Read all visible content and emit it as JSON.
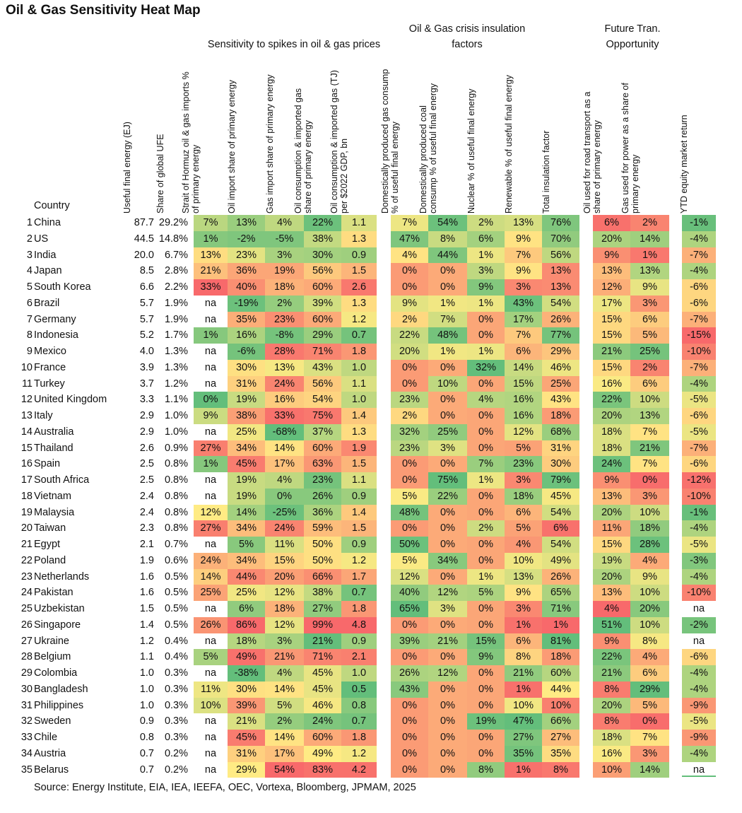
{
  "title": "Oil & Gas Sensitivity Heat Map",
  "group_headers": [
    {
      "id": "sens",
      "text": "Sensitivity to spikes in oil & gas prices"
    },
    {
      "id": "insul",
      "text": "Oil & Gas crisis insulation factors"
    },
    {
      "id": "future",
      "text": "Future Tran. Opportunity"
    }
  ],
  "country_header": "Country",
  "columns": [
    {
      "key": "ufe",
      "label": "Useful final energy (EJ)"
    },
    {
      "key": "share",
      "label": "Share of global UFE"
    },
    {
      "key": "hormuz",
      "label": "Strait of Hormuz oil & gas imports % of primary energy"
    },
    {
      "key": "oil_imp",
      "label": "Oil import share of primary energy"
    },
    {
      "key": "gas_imp",
      "label": "Gas import share of primary energy"
    },
    {
      "key": "oil_cons",
      "label": "Oil consumption & imported gas share of primary energy"
    },
    {
      "key": "oil_gdp",
      "label": "Oil consumption & imported gas (TJ) per $2022 GDP, bn"
    },
    {
      "key": "dom_gas",
      "label": "Domestically produced gas consump % of useful final energy"
    },
    {
      "key": "dom_coal",
      "label": "Domestically produced coal consump % of useful final energy"
    },
    {
      "key": "nuclear",
      "label": "Nuclear % of useful final energy"
    },
    {
      "key": "renew",
      "label": "Renewable % of useful final energy"
    },
    {
      "key": "total_ins",
      "label": "Total insulation factor"
    },
    {
      "key": "road",
      "label": "Oil used for road transport as a share of primary energy"
    },
    {
      "key": "power",
      "label": "Gas used for power as a share of primary energy"
    },
    {
      "key": "ytd",
      "label": "YTD equity market return"
    }
  ],
  "chart_data": {
    "type": "table",
    "title": "Oil & Gas Sensitivity Heat Map",
    "rows": [
      {
        "rank": "1",
        "country": "China",
        "ufe": "87.7",
        "share": "29.2%",
        "hormuz": "7%",
        "oil_imp": "13%",
        "gas_imp": "4%",
        "oil_cons": "22%",
        "oil_gdp": "1.1",
        "dom_gas": "7%",
        "dom_coal": "54%",
        "nuclear": "2%",
        "renew": "13%",
        "total_ins": "76%",
        "road": "6%",
        "power": "2%",
        "ytd": "-1%"
      },
      {
        "rank": "2",
        "country": "US",
        "ufe": "44.5",
        "share": "14.8%",
        "hormuz": "1%",
        "oil_imp": "-2%",
        "gas_imp": "-5%",
        "oil_cons": "38%",
        "oil_gdp": "1.3",
        "dom_gas": "47%",
        "dom_coal": "8%",
        "nuclear": "6%",
        "renew": "9%",
        "total_ins": "70%",
        "road": "20%",
        "power": "14%",
        "ytd": "-4%"
      },
      {
        "rank": "3",
        "country": "India",
        "ufe": "20.0",
        "share": "6.7%",
        "hormuz": "13%",
        "oil_imp": "23%",
        "gas_imp": "3%",
        "oil_cons": "30%",
        "oil_gdp": "0.9",
        "dom_gas": "4%",
        "dom_coal": "44%",
        "nuclear": "1%",
        "renew": "7%",
        "total_ins": "56%",
        "road": "9%",
        "power": "1%",
        "ytd": "-7%"
      },
      {
        "rank": "4",
        "country": "Japan",
        "ufe": "8.5",
        "share": "2.8%",
        "hormuz": "21%",
        "oil_imp": "36%",
        "gas_imp": "19%",
        "oil_cons": "56%",
        "oil_gdp": "1.5",
        "dom_gas": "0%",
        "dom_coal": "0%",
        "nuclear": "3%",
        "renew": "9%",
        "total_ins": "13%",
        "road": "13%",
        "power": "13%",
        "ytd": "-4%"
      },
      {
        "rank": "5",
        "country": "South Korea",
        "ufe": "6.6",
        "share": "2.2%",
        "hormuz": "33%",
        "oil_imp": "40%",
        "gas_imp": "18%",
        "oil_cons": "60%",
        "oil_gdp": "2.6",
        "dom_gas": "0%",
        "dom_coal": "0%",
        "nuclear": "9%",
        "renew": "3%",
        "total_ins": "13%",
        "road": "12%",
        "power": "9%",
        "ytd": "-6%"
      },
      {
        "rank": "6",
        "country": "Brazil",
        "ufe": "5.7",
        "share": "1.9%",
        "hormuz": "na",
        "oil_imp": "-19%",
        "gas_imp": "2%",
        "oil_cons": "39%",
        "oil_gdp": "1.3",
        "dom_gas": "9%",
        "dom_coal": "1%",
        "nuclear": "1%",
        "renew": "43%",
        "total_ins": "54%",
        "road": "17%",
        "power": "3%",
        "ytd": "-6%"
      },
      {
        "rank": "7",
        "country": "Germany",
        "ufe": "5.7",
        "share": "1.9%",
        "hormuz": "na",
        "oil_imp": "35%",
        "gas_imp": "23%",
        "oil_cons": "60%",
        "oil_gdp": "1.2",
        "dom_gas": "2%",
        "dom_coal": "7%",
        "nuclear": "0%",
        "renew": "17%",
        "total_ins": "26%",
        "road": "15%",
        "power": "6%",
        "ytd": "-7%"
      },
      {
        "rank": "8",
        "country": "Indonesia",
        "ufe": "5.2",
        "share": "1.7%",
        "hormuz": "1%",
        "oil_imp": "16%",
        "gas_imp": "-8%",
        "oil_cons": "29%",
        "oil_gdp": "0.7",
        "dom_gas": "22%",
        "dom_coal": "48%",
        "nuclear": "0%",
        "renew": "7%",
        "total_ins": "77%",
        "road": "15%",
        "power": "5%",
        "ytd": "-15%"
      },
      {
        "rank": "9",
        "country": "Mexico",
        "ufe": "4.0",
        "share": "1.3%",
        "hormuz": "na",
        "oil_imp": "-6%",
        "gas_imp": "28%",
        "oil_cons": "71%",
        "oil_gdp": "1.8",
        "dom_gas": "20%",
        "dom_coal": "1%",
        "nuclear": "1%",
        "renew": "6%",
        "total_ins": "29%",
        "road": "21%",
        "power": "25%",
        "ytd": "-10%"
      },
      {
        "rank": "10",
        "country": "France",
        "ufe": "3.9",
        "share": "1.3%",
        "hormuz": "na",
        "oil_imp": "30%",
        "gas_imp": "13%",
        "oil_cons": "43%",
        "oil_gdp": "1.0",
        "dom_gas": "0%",
        "dom_coal": "0%",
        "nuclear": "32%",
        "renew": "14%",
        "total_ins": "46%",
        "road": "15%",
        "power": "2%",
        "ytd": "-7%"
      },
      {
        "rank": "11",
        "country": "Turkey",
        "ufe": "3.7",
        "share": "1.2%",
        "hormuz": "na",
        "oil_imp": "31%",
        "gas_imp": "24%",
        "oil_cons": "56%",
        "oil_gdp": "1.1",
        "dom_gas": "0%",
        "dom_coal": "10%",
        "nuclear": "0%",
        "renew": "15%",
        "total_ins": "25%",
        "road": "16%",
        "power": "6%",
        "ytd": "-4%"
      },
      {
        "rank": "12",
        "country": "United Kingdom",
        "ufe": "3.3",
        "share": "1.1%",
        "hormuz": "0%",
        "oil_imp": "19%",
        "gas_imp": "16%",
        "oil_cons": "54%",
        "oil_gdp": "1.0",
        "dom_gas": "23%",
        "dom_coal": "0%",
        "nuclear": "4%",
        "renew": "16%",
        "total_ins": "43%",
        "road": "22%",
        "power": "10%",
        "ytd": "-5%"
      },
      {
        "rank": "13",
        "country": "Italy",
        "ufe": "2.9",
        "share": "1.0%",
        "hormuz": "9%",
        "oil_imp": "38%",
        "gas_imp": "33%",
        "oil_cons": "75%",
        "oil_gdp": "1.4",
        "dom_gas": "2%",
        "dom_coal": "0%",
        "nuclear": "0%",
        "renew": "16%",
        "total_ins": "18%",
        "road": "20%",
        "power": "13%",
        "ytd": "-6%"
      },
      {
        "rank": "14",
        "country": "Australia",
        "ufe": "2.9",
        "share": "1.0%",
        "hormuz": "na",
        "oil_imp": "25%",
        "gas_imp": "-68%",
        "oil_cons": "37%",
        "oil_gdp": "1.3",
        "dom_gas": "32%",
        "dom_coal": "25%",
        "nuclear": "0%",
        "renew": "12%",
        "total_ins": "68%",
        "road": "18%",
        "power": "7%",
        "ytd": "-5%"
      },
      {
        "rank": "15",
        "country": "Thailand",
        "ufe": "2.6",
        "share": "0.9%",
        "hormuz": "27%",
        "oil_imp": "34%",
        "gas_imp": "14%",
        "oil_cons": "60%",
        "oil_gdp": "1.9",
        "dom_gas": "23%",
        "dom_coal": "3%",
        "nuclear": "0%",
        "renew": "5%",
        "total_ins": "31%",
        "road": "18%",
        "power": "21%",
        "ytd": "-7%"
      },
      {
        "rank": "16",
        "country": "Spain",
        "ufe": "2.5",
        "share": "0.8%",
        "hormuz": "1%",
        "oil_imp": "45%",
        "gas_imp": "17%",
        "oil_cons": "63%",
        "oil_gdp": "1.5",
        "dom_gas": "0%",
        "dom_coal": "0%",
        "nuclear": "7%",
        "renew": "23%",
        "total_ins": "30%",
        "road": "24%",
        "power": "7%",
        "ytd": "-6%"
      },
      {
        "rank": "17",
        "country": "South Africa",
        "ufe": "2.5",
        "share": "0.8%",
        "hormuz": "na",
        "oil_imp": "19%",
        "gas_imp": "4%",
        "oil_cons": "23%",
        "oil_gdp": "1.1",
        "dom_gas": "0%",
        "dom_coal": "75%",
        "nuclear": "1%",
        "renew": "3%",
        "total_ins": "79%",
        "road": "9%",
        "power": "0%",
        "ytd": "-12%"
      },
      {
        "rank": "18",
        "country": "Vietnam",
        "ufe": "2.4",
        "share": "0.8%",
        "hormuz": "na",
        "oil_imp": "19%",
        "gas_imp": "0%",
        "oil_cons": "26%",
        "oil_gdp": "0.9",
        "dom_gas": "5%",
        "dom_coal": "22%",
        "nuclear": "0%",
        "renew": "18%",
        "total_ins": "45%",
        "road": "13%",
        "power": "3%",
        "ytd": "-10%"
      },
      {
        "rank": "19",
        "country": "Malaysia",
        "ufe": "2.4",
        "share": "0.8%",
        "hormuz": "12%",
        "oil_imp": "14%",
        "gas_imp": "-25%",
        "oil_cons": "36%",
        "oil_gdp": "1.4",
        "dom_gas": "48%",
        "dom_coal": "0%",
        "nuclear": "0%",
        "renew": "6%",
        "total_ins": "54%",
        "road": "20%",
        "power": "10%",
        "ytd": "-1%"
      },
      {
        "rank": "20",
        "country": "Taiwan",
        "ufe": "2.3",
        "share": "0.8%",
        "hormuz": "27%",
        "oil_imp": "34%",
        "gas_imp": "24%",
        "oil_cons": "59%",
        "oil_gdp": "1.5",
        "dom_gas": "0%",
        "dom_coal": "0%",
        "nuclear": "2%",
        "renew": "5%",
        "total_ins": "6%",
        "road": "11%",
        "power": "18%",
        "ytd": "-4%"
      },
      {
        "rank": "21",
        "country": "Egypt",
        "ufe": "2.1",
        "share": "0.7%",
        "hormuz": "na",
        "oil_imp": "5%",
        "gas_imp": "11%",
        "oil_cons": "50%",
        "oil_gdp": "0.9",
        "dom_gas": "50%",
        "dom_coal": "0%",
        "nuclear": "0%",
        "renew": "4%",
        "total_ins": "54%",
        "road": "15%",
        "power": "28%",
        "ytd": "-5%"
      },
      {
        "rank": "22",
        "country": "Poland",
        "ufe": "1.9",
        "share": "0.6%",
        "hormuz": "24%",
        "oil_imp": "34%",
        "gas_imp": "15%",
        "oil_cons": "50%",
        "oil_gdp": "1.2",
        "dom_gas": "5%",
        "dom_coal": "34%",
        "nuclear": "0%",
        "renew": "10%",
        "total_ins": "49%",
        "road": "19%",
        "power": "4%",
        "ytd": "-3%"
      },
      {
        "rank": "23",
        "country": "Netherlands",
        "ufe": "1.6",
        "share": "0.5%",
        "hormuz": "14%",
        "oil_imp": "44%",
        "gas_imp": "20%",
        "oil_cons": "66%",
        "oil_gdp": "1.7",
        "dom_gas": "12%",
        "dom_coal": "0%",
        "nuclear": "1%",
        "renew": "13%",
        "total_ins": "26%",
        "road": "20%",
        "power": "9%",
        "ytd": "-4%"
      },
      {
        "rank": "24",
        "country": "Pakistan",
        "ufe": "1.6",
        "share": "0.5%",
        "hormuz": "25%",
        "oil_imp": "25%",
        "gas_imp": "12%",
        "oil_cons": "38%",
        "oil_gdp": "0.7",
        "dom_gas": "40%",
        "dom_coal": "12%",
        "nuclear": "5%",
        "renew": "9%",
        "total_ins": "65%",
        "road": "13%",
        "power": "10%",
        "ytd": "-10%"
      },
      {
        "rank": "25",
        "country": "Uzbekistan",
        "ufe": "1.5",
        "share": "0.5%",
        "hormuz": "na",
        "oil_imp": "6%",
        "gas_imp": "18%",
        "oil_cons": "27%",
        "oil_gdp": "1.8",
        "dom_gas": "65%",
        "dom_coal": "3%",
        "nuclear": "0%",
        "renew": "3%",
        "total_ins": "71%",
        "road": "4%",
        "power": "20%",
        "ytd": "na"
      },
      {
        "rank": "26",
        "country": "Singapore",
        "ufe": "1.4",
        "share": "0.5%",
        "hormuz": "26%",
        "oil_imp": "86%",
        "gas_imp": "12%",
        "oil_cons": "99%",
        "oil_gdp": "4.8",
        "dom_gas": "0%",
        "dom_coal": "0%",
        "nuclear": "0%",
        "renew": "1%",
        "total_ins": "1%",
        "road": "51%",
        "power": "10%",
        "ytd": "-2%"
      },
      {
        "rank": "27",
        "country": "Ukraine",
        "ufe": "1.2",
        "share": "0.4%",
        "hormuz": "na",
        "oil_imp": "18%",
        "gas_imp": "3%",
        "oil_cons": "21%",
        "oil_gdp": "0.9",
        "dom_gas": "39%",
        "dom_coal": "21%",
        "nuclear": "15%",
        "renew": "6%",
        "total_ins": "81%",
        "road": "9%",
        "power": "8%",
        "ytd": "na"
      },
      {
        "rank": "28",
        "country": "Belgium",
        "ufe": "1.1",
        "share": "0.4%",
        "hormuz": "5%",
        "oil_imp": "49%",
        "gas_imp": "21%",
        "oil_cons": "71%",
        "oil_gdp": "2.1",
        "dom_gas": "0%",
        "dom_coal": "0%",
        "nuclear": "9%",
        "renew": "8%",
        "total_ins": "18%",
        "road": "22%",
        "power": "4%",
        "ytd": "-6%"
      },
      {
        "rank": "29",
        "country": "Colombia",
        "ufe": "1.0",
        "share": "0.3%",
        "hormuz": "na",
        "oil_imp": "-38%",
        "gas_imp": "4%",
        "oil_cons": "45%",
        "oil_gdp": "1.0",
        "dom_gas": "26%",
        "dom_coal": "12%",
        "nuclear": "0%",
        "renew": "21%",
        "total_ins": "60%",
        "road": "21%",
        "power": "6%",
        "ytd": "-4%"
      },
      {
        "rank": "30",
        "country": "Bangladesh",
        "ufe": "1.0",
        "share": "0.3%",
        "hormuz": "11%",
        "oil_imp": "30%",
        "gas_imp": "14%",
        "oil_cons": "45%",
        "oil_gdp": "0.5",
        "dom_gas": "43%",
        "dom_coal": "0%",
        "nuclear": "0%",
        "renew": "1%",
        "total_ins": "44%",
        "road": "8%",
        "power": "29%",
        "ytd": "-4%"
      },
      {
        "rank": "31",
        "country": "Philippines",
        "ufe": "1.0",
        "share": "0.3%",
        "hormuz": "10%",
        "oil_imp": "39%",
        "gas_imp": "5%",
        "oil_cons": "46%",
        "oil_gdp": "0.8",
        "dom_gas": "0%",
        "dom_coal": "0%",
        "nuclear": "0%",
        "renew": "10%",
        "total_ins": "10%",
        "road": "20%",
        "power": "5%",
        "ytd": "-9%"
      },
      {
        "rank": "32",
        "country": "Sweden",
        "ufe": "0.9",
        "share": "0.3%",
        "hormuz": "na",
        "oil_imp": "21%",
        "gas_imp": "2%",
        "oil_cons": "24%",
        "oil_gdp": "0.7",
        "dom_gas": "0%",
        "dom_coal": "0%",
        "nuclear": "19%",
        "renew": "47%",
        "total_ins": "66%",
        "road": "8%",
        "power": "0%",
        "ytd": "-5%"
      },
      {
        "rank": "33",
        "country": "Chile",
        "ufe": "0.8",
        "share": "0.3%",
        "hormuz": "na",
        "oil_imp": "45%",
        "gas_imp": "14%",
        "oil_cons": "60%",
        "oil_gdp": "1.8",
        "dom_gas": "0%",
        "dom_coal": "0%",
        "nuclear": "0%",
        "renew": "27%",
        "total_ins": "27%",
        "road": "18%",
        "power": "7%",
        "ytd": "-9%"
      },
      {
        "rank": "34",
        "country": "Austria",
        "ufe": "0.7",
        "share": "0.2%",
        "hormuz": "na",
        "oil_imp": "31%",
        "gas_imp": "17%",
        "oil_cons": "49%",
        "oil_gdp": "1.2",
        "dom_gas": "0%",
        "dom_coal": "0%",
        "nuclear": "0%",
        "renew": "35%",
        "total_ins": "35%",
        "road": "16%",
        "power": "3%",
        "ytd": "-4%"
      },
      {
        "rank": "35",
        "country": "Belarus",
        "ufe": "0.7",
        "share": "0.2%",
        "hormuz": "na",
        "oil_imp": "29%",
        "gas_imp": "54%",
        "oil_cons": "83%",
        "oil_gdp": "4.2",
        "dom_gas": "0%",
        "dom_coal": "0%",
        "nuclear": "8%",
        "renew": "1%",
        "total_ins": "8%",
        "road": "10%",
        "power": "14%",
        "ytd": "na"
      }
    ],
    "color_scale": {
      "green": "#63be7b",
      "yellow": "#ffeb84",
      "red": "#f8696b"
    },
    "color_rules": {
      "hormuz": "low_good",
      "oil_imp": "low_good",
      "gas_imp": "low_good",
      "oil_cons": "low_good",
      "oil_gdp": "low_good",
      "dom_gas": "high_good",
      "dom_coal": "high_good",
      "nuclear": "high_good",
      "renew": "high_good",
      "total_ins": "high_good",
      "road": "high_good",
      "power": "high_good",
      "ytd": "high_good"
    }
  },
  "source": "Source: Energy Institute, EIA, IEA, IEEFA, OEC, Vortexa, Bloomberg, JPMAM, 2025"
}
